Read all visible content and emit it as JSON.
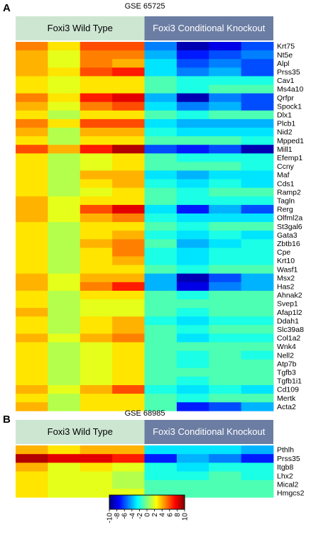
{
  "chart_data": [
    {
      "type": "heatmap",
      "panel": "A",
      "title": "GSE 65725",
      "groups": [
        {
          "label": "Foxi3 Wild Type",
          "color": "#cde6d2",
          "text_color": "#000000",
          "columns": 4
        },
        {
          "label": "Foxi3 Conditional Knockout",
          "color": "#6b7da3",
          "text_color": "#ffffff",
          "columns": 4
        }
      ],
      "rows": [
        "Krt75",
        "Nt5e",
        "Alpl",
        "Prss35",
        "Cav1",
        "Ms4a10",
        "Qrfpr",
        "Spock1",
        "Dlx1",
        "Plcb1",
        "Nid2",
        "Mpped1",
        "Mill1",
        "Efemp1",
        "Ccny",
        "Maf",
        "Cds1",
        "Ramp2",
        "Tagln",
        "Rerg",
        "Olfml2a",
        "St3gal6",
        "Gata3",
        "Zbtb16",
        "Cpe",
        "Krt10",
        "Wasf1",
        "Msx2",
        "Has2",
        "Ahnak2",
        "Svep1",
        "Afap1l2",
        "Ddah1",
        "Slc39a8",
        "Col1a2",
        "Wnk4",
        "Nell2",
        "Atp7b",
        "Tgfb3",
        "Tgfb1i1",
        "Cd109",
        "Mertk",
        "Acta2"
      ],
      "values": [
        [
          5,
          3,
          6,
          6,
          -5,
          -9,
          -8,
          -6
        ],
        [
          4,
          2,
          5,
          5,
          -4,
          -7,
          -6,
          -5
        ],
        [
          4,
          2,
          5,
          4,
          -3,
          -6,
          -5,
          -6
        ],
        [
          4,
          3,
          6,
          7,
          -3,
          -5,
          -4,
          -6
        ],
        [
          3,
          2,
          3,
          3,
          -1,
          -2,
          -2,
          -2
        ],
        [
          3,
          2,
          3,
          3,
          -1,
          -2,
          -1,
          -1
        ],
        [
          5,
          3,
          7,
          8,
          -4,
          -9,
          -5,
          -6
        ],
        [
          4,
          2,
          5,
          6,
          -3,
          -5,
          -4,
          -6
        ],
        [
          3,
          1,
          3,
          3,
          -1,
          -2,
          -1,
          -1
        ],
        [
          5,
          3,
          6,
          6,
          -3,
          -4,
          -4,
          -4
        ],
        [
          4,
          1,
          4,
          4,
          -2,
          -3,
          -3,
          -3
        ],
        [
          3,
          1,
          3,
          3,
          -1,
          -1,
          -1,
          -2
        ],
        [
          6,
          4,
          7,
          9,
          -6,
          -7,
          -6,
          -9
        ],
        [
          3,
          1,
          2,
          3,
          -1,
          -2,
          -2,
          -2
        ],
        [
          3,
          1,
          2,
          3,
          -1,
          -1,
          -1,
          -2
        ],
        [
          3,
          1,
          4,
          4,
          -3,
          -4,
          -3,
          -3
        ],
        [
          3,
          1,
          3,
          4,
          -2,
          -3,
          -2,
          -3
        ],
        [
          3,
          1,
          2,
          3,
          -1,
          -2,
          -1,
          -1
        ],
        [
          4,
          2,
          3,
          3,
          -1,
          -2,
          -2,
          -2
        ],
        [
          4,
          2,
          6,
          8,
          -3,
          -7,
          -4,
          -6
        ],
        [
          4,
          2,
          4,
          5,
          -2,
          -3,
          -3,
          -3
        ],
        [
          3,
          1,
          3,
          3,
          -1,
          -2,
          -1,
          -1
        ],
        [
          3,
          1,
          3,
          4,
          -2,
          -3,
          -2,
          -3
        ],
        [
          3,
          1,
          4,
          5,
          -1,
          -4,
          -3,
          -2
        ],
        [
          3,
          1,
          3,
          5,
          -2,
          -3,
          -2,
          -2
        ],
        [
          3,
          1,
          3,
          4,
          -2,
          -3,
          -2,
          -2
        ],
        [
          3,
          1,
          3,
          3,
          -1,
          -2,
          -1,
          -1
        ],
        [
          4,
          2,
          4,
          4,
          -4,
          -9,
          -6,
          -4
        ],
        [
          4,
          2,
          5,
          7,
          -4,
          -8,
          -5,
          -4
        ],
        [
          3,
          1,
          3,
          3,
          -1,
          -2,
          -1,
          -1
        ],
        [
          3,
          1,
          2,
          2,
          -1,
          -1,
          -1,
          -1
        ],
        [
          4,
          1,
          2,
          2,
          -1,
          -2,
          -1,
          -1
        ],
        [
          3,
          1,
          3,
          4,
          -2,
          -3,
          -2,
          -2
        ],
        [
          3,
          1,
          3,
          4,
          -1,
          -2,
          -1,
          -1
        ],
        [
          4,
          2,
          4,
          5,
          -1,
          -3,
          -2,
          -2
        ],
        [
          3,
          1,
          2,
          3,
          -1,
          -1,
          -1,
          -1
        ],
        [
          3,
          1,
          2,
          3,
          -1,
          -2,
          -1,
          -2
        ],
        [
          3,
          1,
          2,
          3,
          -1,
          -2,
          -1,
          -1
        ],
        [
          3,
          1,
          2,
          3,
          -1,
          -1,
          -1,
          -1
        ],
        [
          3,
          1,
          2,
          3,
          -1,
          -2,
          -1,
          -1
        ],
        [
          4,
          2,
          4,
          6,
          -2,
          -3,
          -2,
          -3
        ],
        [
          3,
          1,
          3,
          3,
          -1,
          -2,
          -1,
          -1
        ],
        [
          4,
          1,
          3,
          3,
          -1,
          -7,
          -6,
          -4
        ]
      ]
    },
    {
      "type": "heatmap",
      "panel": "B",
      "title": "GSE 68985",
      "groups": [
        {
          "label": "Foxi3 Wild Type",
          "color": "#cde6d2",
          "text_color": "#000000",
          "columns": 4
        },
        {
          "label": "Foxi3 Conditional Knockout",
          "color": "#6b7da3",
          "text_color": "#ffffff",
          "columns": 4
        }
      ],
      "rows": [
        "Pthlh",
        "Prss35",
        "Itgb8",
        "Lhx2",
        "Mical2",
        "Hmgcs2"
      ],
      "values": [
        [
          4,
          3,
          4,
          4,
          -3,
          -3,
          -3,
          -4
        ],
        [
          9,
          8,
          8,
          7,
          -7,
          -4,
          -5,
          -7
        ],
        [
          4,
          2,
          3,
          2,
          -2,
          -3,
          -2,
          -2
        ],
        [
          3,
          2,
          2,
          1,
          -2,
          -2,
          -1,
          -2
        ],
        [
          3,
          2,
          2,
          1,
          -1,
          -1,
          -1,
          -1
        ],
        [
          3,
          2,
          2,
          2,
          -1,
          -1,
          -1,
          -1
        ]
      ]
    }
  ],
  "colorbar": {
    "min": -10,
    "max": 10,
    "ticks": [
      "-10",
      "-8",
      "-6",
      "-4",
      "-2",
      "0",
      "2",
      "4",
      "6",
      "8",
      "10"
    ]
  }
}
